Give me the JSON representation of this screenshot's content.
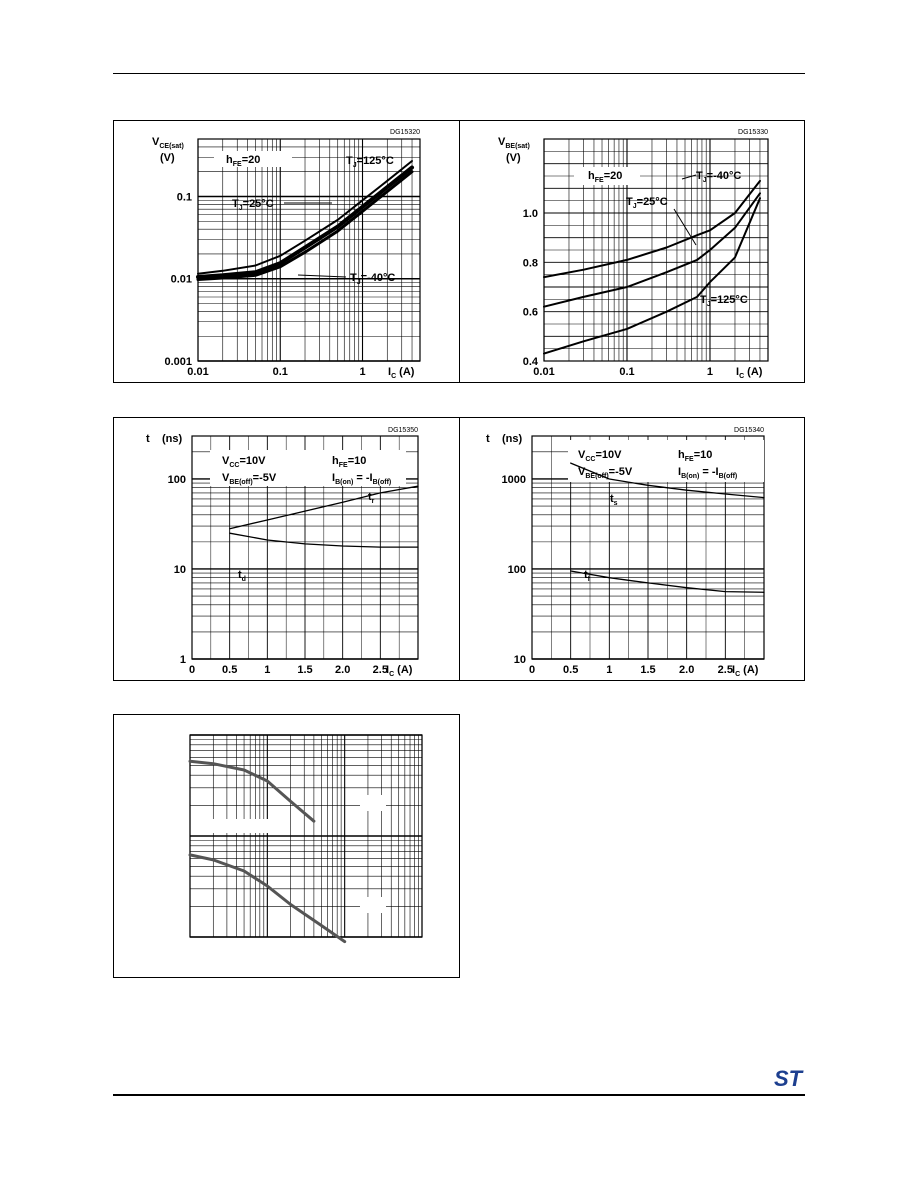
{
  "page": {
    "logo": "ST",
    "logo_color": "#1d3f8f"
  },
  "chart_data": [
    {
      "id": "vcesat",
      "type": "line",
      "code": "DG15320",
      "ylabel": "V",
      "ylabel_sub": "CE(sat)",
      "yunit": "(V)",
      "xlabel": "I",
      "xlabel_sub": "C",
      "xunit": "(A)",
      "xscale": "log",
      "yscale": "log",
      "xlim": [
        0.01,
        5
      ],
      "ylim": [
        0.001,
        0.5
      ],
      "xticks": [
        {
          "v": 0.01,
          "label": "0.01"
        },
        {
          "v": 0.1,
          "label": "0.1"
        },
        {
          "v": 1,
          "label": "1"
        }
      ],
      "yticks": [
        {
          "v": 0.001,
          "label": "0.001"
        },
        {
          "v": 0.01,
          "label": "0.01"
        },
        {
          "v": 0.1,
          "label": "0.1"
        }
      ],
      "conditions": [
        {
          "text": "h",
          "sub": "FE",
          "rest": "=20"
        }
      ],
      "series": [
        {
          "name": "T",
          "sub": "J",
          "rest": "=125°C",
          "stroke": 2,
          "points": [
            [
              0.01,
              0.0115
            ],
            [
              0.02,
              0.0125
            ],
            [
              0.05,
              0.0145
            ],
            [
              0.1,
              0.019
            ],
            [
              0.2,
              0.029
            ],
            [
              0.5,
              0.052
            ],
            [
              1,
              0.09
            ],
            [
              2,
              0.155
            ],
            [
              4,
              0.27
            ]
          ]
        },
        {
          "name": "T",
          "sub": "J",
          "rest": "=25°C",
          "stroke": 4,
          "points": [
            [
              0.01,
              0.0105
            ],
            [
              0.02,
              0.011
            ],
            [
              0.05,
              0.012
            ],
            [
              0.1,
              0.0155
            ],
            [
              0.2,
              0.024
            ],
            [
              0.5,
              0.043
            ],
            [
              1,
              0.075
            ],
            [
              2,
              0.13
            ],
            [
              4,
              0.225
            ]
          ]
        },
        {
          "name": "T",
          "sub": "J",
          "rest": "=-40°C",
          "stroke": 3,
          "points": [
            [
              0.01,
              0.0098
            ],
            [
              0.02,
              0.0102
            ],
            [
              0.05,
              0.011
            ],
            [
              0.1,
              0.014
            ],
            [
              0.2,
              0.021
            ],
            [
              0.5,
              0.038
            ],
            [
              1,
              0.066
            ],
            [
              2,
              0.115
            ],
            [
              4,
              0.2
            ]
          ]
        }
      ]
    },
    {
      "id": "vbesat",
      "type": "line",
      "code": "DG15330",
      "ylabel": "V",
      "ylabel_sub": "BE(sat)",
      "yunit": "(V)",
      "xlabel": "I",
      "xlabel_sub": "C",
      "xunit": "(A)",
      "xscale": "log",
      "yscale": "linear",
      "xlim": [
        0.01,
        5
      ],
      "ylim": [
        0.4,
        1.3
      ],
      "xticks": [
        {
          "v": 0.01,
          "label": "0.01"
        },
        {
          "v": 0.1,
          "label": "0.1"
        },
        {
          "v": 1,
          "label": "1"
        }
      ],
      "yticks": [
        {
          "v": 0.4,
          "label": "0.4"
        },
        {
          "v": 0.6,
          "label": "0.6"
        },
        {
          "v": 0.8,
          "label": "0.8"
        },
        {
          "v": 1.0,
          "label": "1.0"
        }
      ],
      "conditions": [
        {
          "text": "h",
          "sub": "FE",
          "rest": "=20"
        }
      ],
      "series": [
        {
          "name": "T",
          "sub": "J",
          "rest": "=-40°C",
          "stroke": 2,
          "points": [
            [
              0.01,
              0.74
            ],
            [
              0.03,
              0.77
            ],
            [
              0.1,
              0.81
            ],
            [
              0.3,
              0.86
            ],
            [
              0.7,
              0.91
            ],
            [
              1,
              0.93
            ],
            [
              2,
              1.0
            ],
            [
              4,
              1.13
            ]
          ]
        },
        {
          "name": "T",
          "sub": "J",
          "rest": "=25°C",
          "stroke": 2,
          "points": [
            [
              0.01,
              0.62
            ],
            [
              0.03,
              0.66
            ],
            [
              0.1,
              0.7
            ],
            [
              0.3,
              0.76
            ],
            [
              0.7,
              0.81
            ],
            [
              1,
              0.85
            ],
            [
              2,
              0.94
            ],
            [
              4,
              1.08
            ]
          ]
        },
        {
          "name": "T",
          "sub": "J",
          "rest": "=125°C",
          "stroke": 2,
          "points": [
            [
              0.01,
              0.43
            ],
            [
              0.03,
              0.48
            ],
            [
              0.1,
              0.53
            ],
            [
              0.3,
              0.6
            ],
            [
              0.7,
              0.66
            ],
            [
              1,
              0.72
            ],
            [
              2,
              0.82
            ],
            [
              4,
              1.06
            ]
          ]
        }
      ]
    },
    {
      "id": "ton",
      "type": "line",
      "code": "DG15350",
      "ylabel": "t",
      "ylabel_sub": "",
      "yunit": "(ns)",
      "xlabel": "I",
      "xlabel_sub": "C",
      "xunit": "(A)",
      "xscale": "linear",
      "yscale": "log",
      "xlim": [
        0,
        3
      ],
      "ylim": [
        1,
        300
      ],
      "xticks": [
        {
          "v": 0,
          "label": "0"
        },
        {
          "v": 0.5,
          "label": "0.5"
        },
        {
          "v": 1,
          "label": "1"
        },
        {
          "v": 1.5,
          "label": "1.5"
        },
        {
          "v": 2,
          "label": "2.0"
        },
        {
          "v": 2.5,
          "label": "2.5"
        }
      ],
      "yticks": [
        {
          "v": 1,
          "label": "1"
        },
        {
          "v": 10,
          "label": "10"
        },
        {
          "v": 100,
          "label": "100"
        }
      ],
      "conditions": [
        {
          "text": "V",
          "sub": "CC",
          "rest": "=10V"
        },
        {
          "text": "V",
          "sub": "BE(off)",
          "rest": "=-5V"
        },
        {
          "text": "h",
          "sub": "FE",
          "rest": "=10"
        },
        {
          "text": "I",
          "sub": "B(on)",
          "rest": " = -I",
          "sub2": "B(off)"
        }
      ],
      "series": [
        {
          "name": "t",
          "sub": "r",
          "stroke": 1.3,
          "points": [
            [
              0.5,
              28
            ],
            [
              1,
              35
            ],
            [
              1.5,
              44
            ],
            [
              2,
              55
            ],
            [
              2.5,
              70
            ],
            [
              3,
              83
            ]
          ]
        },
        {
          "name": "t",
          "sub": "d",
          "stroke": 1.3,
          "points": [
            [
              0.5,
              25
            ],
            [
              1,
              21
            ],
            [
              1.5,
              19
            ],
            [
              2,
              18
            ],
            [
              2.5,
              17.5
            ],
            [
              3,
              17.5
            ]
          ]
        }
      ]
    },
    {
      "id": "toff",
      "type": "line",
      "code": "DG15340",
      "ylabel": "t",
      "ylabel_sub": "",
      "yunit": "(ns)",
      "xlabel": "I",
      "xlabel_sub": "C",
      "xunit": "(A)",
      "xscale": "linear",
      "yscale": "log",
      "xlim": [
        0,
        3
      ],
      "ylim": [
        10,
        3000
      ],
      "xticks": [
        {
          "v": 0,
          "label": "0"
        },
        {
          "v": 0.5,
          "label": "0.5"
        },
        {
          "v": 1,
          "label": "1"
        },
        {
          "v": 1.5,
          "label": "1.5"
        },
        {
          "v": 2,
          "label": "2.0"
        },
        {
          "v": 2.5,
          "label": "2.5"
        }
      ],
      "yticks": [
        {
          "v": 10,
          "label": "10"
        },
        {
          "v": 100,
          "label": "100"
        },
        {
          "v": 1000,
          "label": "1000"
        }
      ],
      "conditions": [
        {
          "text": "V",
          "sub": "CC",
          "rest": "=10V"
        },
        {
          "text": "V",
          "sub": "BE(off)",
          "rest": "=-5V"
        },
        {
          "text": "h",
          "sub": "FE",
          "rest": "=10"
        },
        {
          "text": "I",
          "sub": "B(on)",
          "rest": " = -I",
          "sub2": "B(off)"
        }
      ],
      "series": [
        {
          "name": "t",
          "sub": "s",
          "stroke": 1.3,
          "points": [
            [
              0.5,
              1500
            ],
            [
              1,
              1000
            ],
            [
              1.5,
              850
            ],
            [
              2,
              750
            ],
            [
              2.5,
              680
            ],
            [
              3,
              620
            ]
          ]
        },
        {
          "name": "t",
          "sub": "f",
          "stroke": 1.3,
          "points": [
            [
              0.5,
              95
            ],
            [
              1,
              80
            ],
            [
              1.5,
              70
            ],
            [
              2,
              62
            ],
            [
              2.5,
              56
            ],
            [
              3,
              55
            ]
          ]
        }
      ]
    },
    {
      "id": "unlabeled",
      "type": "line",
      "code": "",
      "ylabel": "",
      "ylabel_sub": "",
      "yunit": "",
      "xlabel": "",
      "xlabel_sub": "",
      "xunit": "",
      "xscale": "log",
      "yscale": "log",
      "xlim": [
        0.01,
        10
      ],
      "ylim": [
        0.01,
        1
      ],
      "xticks": [],
      "yticks": [],
      "conditions": [],
      "series": [
        {
          "stroke": 3,
          "color": "#555555",
          "points": [
            [
              0.01,
              0.55
            ],
            [
              0.02,
              0.52
            ],
            [
              0.05,
              0.45
            ],
            [
              0.1,
              0.35
            ],
            [
              0.2,
              0.22
            ],
            [
              0.4,
              0.14
            ]
          ]
        },
        {
          "stroke": 3,
          "color": "#555555",
          "points": [
            [
              0.01,
              0.065
            ],
            [
              0.02,
              0.058
            ],
            [
              0.05,
              0.045
            ],
            [
              0.1,
              0.032
            ],
            [
              0.2,
              0.021
            ],
            [
              0.5,
              0.013
            ],
            [
              1,
              0.009
            ]
          ]
        }
      ]
    }
  ]
}
